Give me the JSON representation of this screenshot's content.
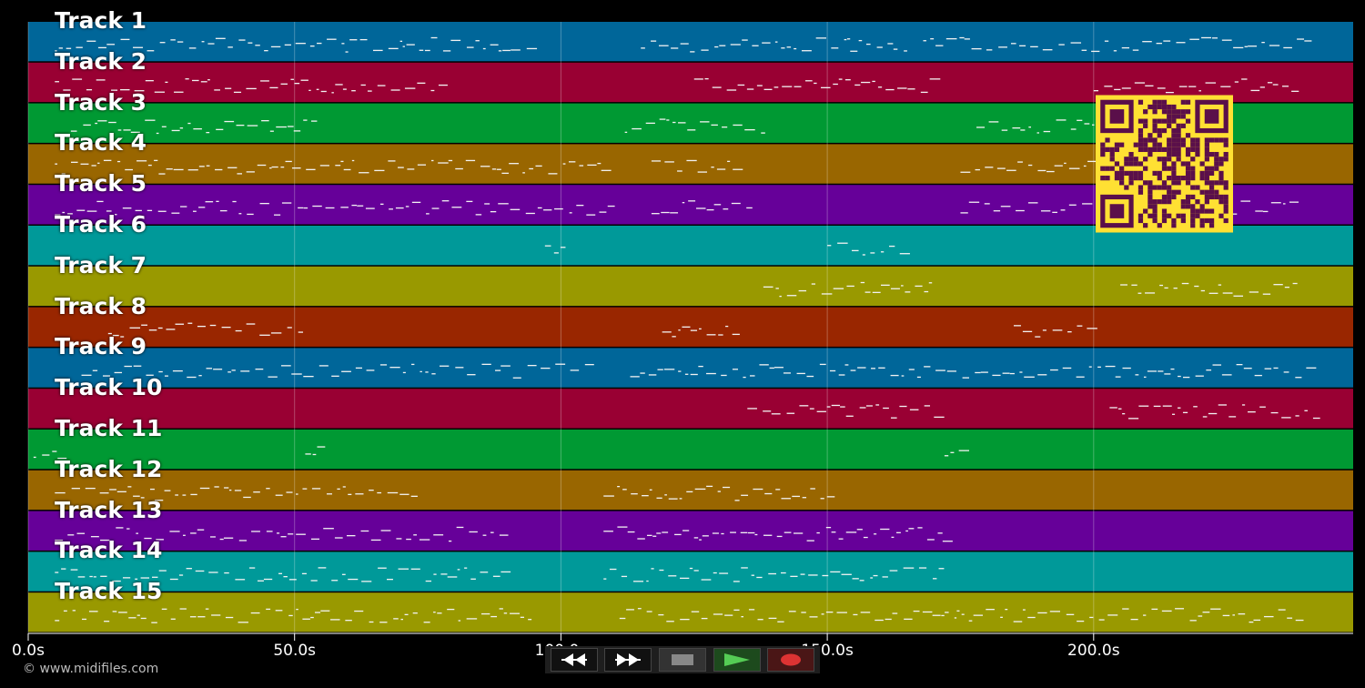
{
  "app": {
    "copyright": "© www.midifiles.com"
  },
  "timeline": {
    "duration_s": 249,
    "ticks": [
      {
        "t": 0,
        "label": "0.0s"
      },
      {
        "t": 50,
        "label": "50.0s"
      },
      {
        "t": 100,
        "label": "100.0s"
      },
      {
        "t": 150,
        "label": "150.0s"
      },
      {
        "t": 200,
        "label": "200.0s"
      }
    ]
  },
  "tracks": [
    {
      "name": "Track 1",
      "color": "#006699"
    },
    {
      "name": "Track 2",
      "color": "#990033"
    },
    {
      "name": "Track 3",
      "color": "#009933"
    },
    {
      "name": "Track 4",
      "color": "#996600"
    },
    {
      "name": "Track 5",
      "color": "#660099"
    },
    {
      "name": "Track 6",
      "color": "#009999"
    },
    {
      "name": "Track 7",
      "color": "#999900"
    },
    {
      "name": "Track 8",
      "color": "#992600"
    },
    {
      "name": "Track 9",
      "color": "#006699"
    },
    {
      "name": "Track 10",
      "color": "#990033"
    },
    {
      "name": "Track 11",
      "color": "#009933"
    },
    {
      "name": "Track 12",
      "color": "#996600"
    },
    {
      "name": "Track 13",
      "color": "#660099"
    },
    {
      "name": "Track 14",
      "color": "#009999"
    },
    {
      "name": "Track 15",
      "color": "#999900"
    }
  ],
  "transport": {
    "rewind_icon": "rewind-icon",
    "forward_icon": "fast-forward-icon",
    "stop_icon": "stop-icon",
    "play_icon": "play-icon",
    "record_icon": "record-icon",
    "colors": {
      "stop": "#888888",
      "play": "#55cc55",
      "record": "#dd3333"
    }
  },
  "qr": {
    "fg": "#5a0f4a",
    "bg": "#ffe033"
  }
}
